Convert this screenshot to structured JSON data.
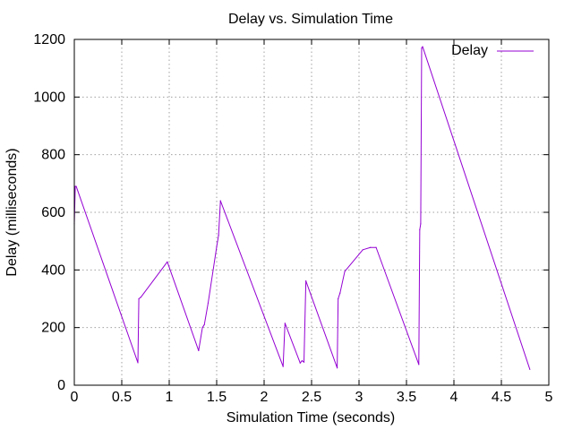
{
  "chart_data": {
    "type": "line",
    "title": "Delay vs. Simulation Time",
    "xlabel": "Simulation Time (seconds)",
    "ylabel": "Delay (milliseconds)",
    "xlim": [
      0,
      5
    ],
    "ylim": [
      0,
      1200
    ],
    "xticks": [
      "0",
      "0.5",
      "1",
      "1.5",
      "2",
      "2.5",
      "3",
      "3.5",
      "4",
      "4.5",
      "5"
    ],
    "yticks": [
      "0",
      "200",
      "400",
      "600",
      "800",
      "1000",
      "1200"
    ],
    "grid": true,
    "legend_position": "top-right",
    "series": [
      {
        "name": "Delay",
        "color": "#9400d3",
        "points": [
          [
            0.0,
            560
          ],
          [
            0.01,
            690
          ],
          [
            0.02,
            690
          ],
          [
            0.67,
            78
          ],
          [
            0.68,
            300
          ],
          [
            0.7,
            305
          ],
          [
            0.98,
            428
          ],
          [
            1.31,
            120
          ],
          [
            1.35,
            200
          ],
          [
            1.37,
            210
          ],
          [
            1.41,
            285
          ],
          [
            1.5,
            480
          ],
          [
            1.52,
            520
          ],
          [
            1.54,
            640
          ],
          [
            2.2,
            65
          ],
          [
            2.22,
            215
          ],
          [
            2.38,
            77
          ],
          [
            2.4,
            85
          ],
          [
            2.42,
            80
          ],
          [
            2.44,
            362
          ],
          [
            2.77,
            60
          ],
          [
            2.78,
            300
          ],
          [
            2.8,
            320
          ],
          [
            2.85,
            395
          ],
          [
            3.04,
            470
          ],
          [
            3.12,
            478
          ],
          [
            3.18,
            478
          ],
          [
            3.63,
            72
          ],
          [
            3.64,
            540
          ],
          [
            3.65,
            560
          ],
          [
            3.66,
            1170
          ],
          [
            3.67,
            1175
          ],
          [
            4.8,
            55
          ]
        ]
      }
    ]
  }
}
